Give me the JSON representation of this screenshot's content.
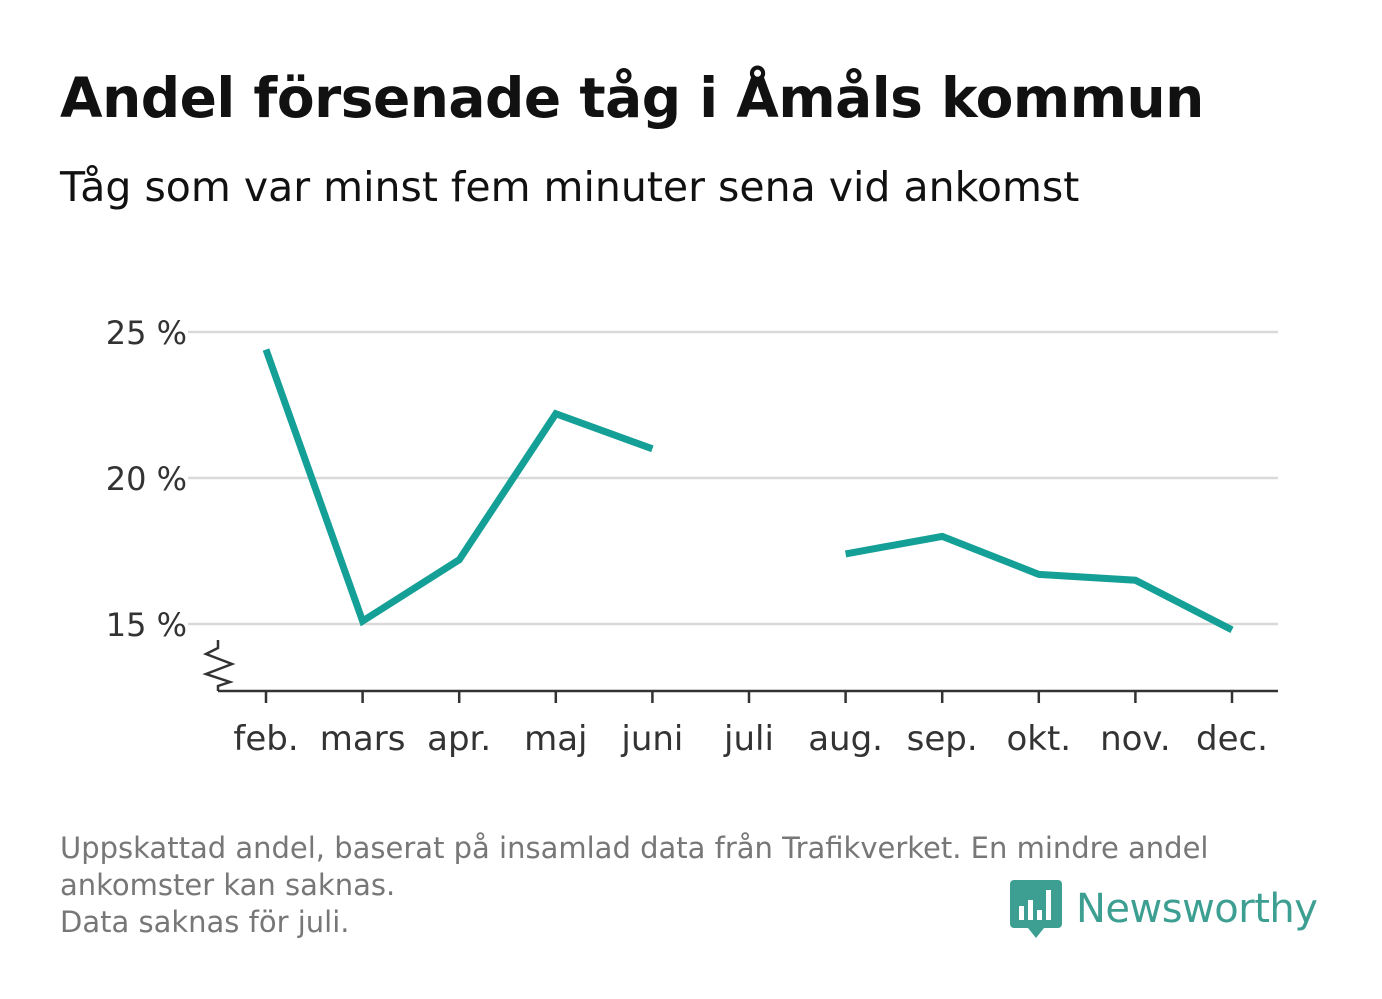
{
  "title": "Andel försenade tåg i Åmåls kommun",
  "subtitle": "Tåg som var minst fem minuter sena vid ankomst",
  "footnote": [
    "Uppskattad andel, baserat på insamlad data från Trafikverket. En mindre andel",
    "ankomster kan saknas.",
    "Data saknas för juli."
  ],
  "logo": {
    "text": "Newsworthy",
    "icon": "newsworthy-bar-chart-icon",
    "color": "#3d9f92"
  },
  "colors": {
    "line": "#14a096",
    "grid": "#d9d9d9",
    "axis": "#333333",
    "text": "#333333"
  },
  "chart_data": {
    "type": "line",
    "title": "Andel försenade tåg i Åmåls kommun",
    "subtitle": "Tåg som var minst fem minuter sena vid ankomst",
    "xlabel": "",
    "ylabel": "",
    "categories": [
      "feb.",
      "mars",
      "apr.",
      "maj",
      "juni",
      "juli",
      "aug.",
      "sep.",
      "okt.",
      "nov.",
      "dec."
    ],
    "series": [
      {
        "values": [
          24.4,
          15.1,
          17.2,
          22.2,
          21.0,
          null,
          17.4,
          18.0,
          16.7,
          16.5,
          14.8
        ]
      }
    ],
    "yticks": [
      15,
      20,
      25
    ],
    "ytick_labels": [
      "15 %",
      "20 %",
      "25 %"
    ],
    "ylim": [
      12.7,
      25
    ],
    "broken_axis": true,
    "grid": true,
    "legend": "none"
  }
}
